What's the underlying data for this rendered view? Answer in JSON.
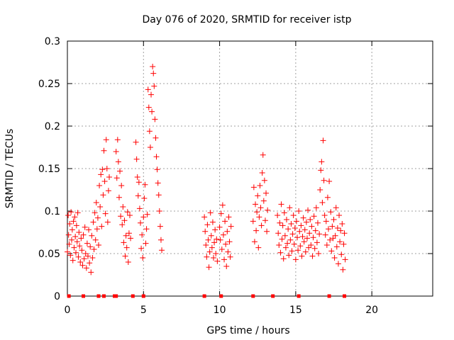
{
  "chart_data": {
    "type": "scatter",
    "title": "Day 076 of 2020, SRMTID for receiver istp",
    "xlabel": "GPS time / hours",
    "ylabel": "SRMTID / TECUs",
    "xlim": [
      0,
      24
    ],
    "ylim": [
      0,
      0.3
    ],
    "xticks": [
      0,
      5,
      10,
      15,
      20
    ],
    "xtick_labels": [
      "0",
      "5",
      "10",
      "15",
      "20"
    ],
    "yticks": [
      0,
      0.05,
      0.1,
      0.15,
      0.2,
      0.25,
      0.3
    ],
    "ytick_labels": [
      "0",
      "0.05",
      "0.1",
      "0.15",
      "0.2",
      "0.25",
      "0.3"
    ],
    "grid": true,
    "marker": "plus",
    "series_color": "#ff0000",
    "series": [
      {
        "name": "SRMTID",
        "points": [
          [
            0.0,
            0.052
          ],
          [
            0.05,
            0.095
          ],
          [
            0.08,
            0.072
          ],
          [
            0.12,
            0.061
          ],
          [
            0.15,
            0.085
          ],
          [
            0.2,
            0.048
          ],
          [
            0.24,
            0.099
          ],
          [
            0.28,
            0.066
          ],
          [
            0.32,
            0.078
          ],
          [
            0.36,
            0.042
          ],
          [
            0.4,
            0.088
          ],
          [
            0.44,
            0.057
          ],
          [
            0.48,
            0.093
          ],
          [
            0.52,
            0.07
          ],
          [
            0.56,
            0.051
          ],
          [
            0.6,
            0.083
          ],
          [
            0.64,
            0.064
          ],
          [
            0.68,
            0.098
          ],
          [
            0.72,
            0.046
          ],
          [
            0.76,
            0.075
          ],
          [
            0.8,
            0.059
          ],
          [
            0.85,
            0.04
          ],
          [
            0.9,
            0.068
          ],
          [
            0.95,
            0.054
          ],
          [
            1.0,
            0.036
          ],
          [
            1.05,
            0.072
          ],
          [
            1.1,
            0.044
          ],
          [
            1.15,
            0.081
          ],
          [
            1.2,
            0.05
          ],
          [
            1.25,
            0.033
          ],
          [
            1.3,
            0.062
          ],
          [
            1.35,
            0.047
          ],
          [
            1.4,
            0.078
          ],
          [
            1.45,
            0.039
          ],
          [
            1.5,
            0.058
          ],
          [
            1.55,
            0.028
          ],
          [
            1.6,
            0.071
          ],
          [
            1.65,
            0.045
          ],
          [
            1.7,
            0.087
          ],
          [
            1.75,
            0.055
          ],
          [
            1.8,
            0.098
          ],
          [
            1.85,
            0.066
          ],
          [
            1.9,
            0.11
          ],
          [
            1.95,
            0.079
          ],
          [
            2.0,
            0.092
          ],
          [
            2.05,
            0.06
          ],
          [
            2.1,
            0.13
          ],
          [
            2.15,
            0.105
          ],
          [
            2.2,
            0.143
          ],
          [
            2.25,
            0.082
          ],
          [
            2.3,
            0.149
          ],
          [
            2.35,
            0.119
          ],
          [
            2.4,
            0.171
          ],
          [
            2.45,
            0.135
          ],
          [
            2.5,
            0.097
          ],
          [
            2.55,
            0.184
          ],
          [
            2.6,
            0.15
          ],
          [
            2.65,
            0.087
          ],
          [
            2.7,
            0.124
          ],
          [
            2.75,
            0.14
          ],
          [
            3.2,
            0.17
          ],
          [
            3.25,
            0.139
          ],
          [
            3.3,
            0.184
          ],
          [
            3.35,
            0.158
          ],
          [
            3.4,
            0.116
          ],
          [
            3.45,
            0.147
          ],
          [
            3.5,
            0.094
          ],
          [
            3.55,
            0.13
          ],
          [
            3.6,
            0.084
          ],
          [
            3.65,
            0.105
          ],
          [
            3.7,
            0.063
          ],
          [
            3.75,
            0.089
          ],
          [
            3.8,
            0.047
          ],
          [
            3.85,
            0.071
          ],
          [
            3.9,
            0.057
          ],
          [
            3.95,
            0.099
          ],
          [
            4.0,
            0.04
          ],
          [
            4.05,
            0.074
          ],
          [
            4.1,
            0.095
          ],
          [
            4.15,
            0.068
          ],
          [
            4.5,
            0.181
          ],
          [
            4.55,
            0.161
          ],
          [
            4.6,
            0.14
          ],
          [
            4.65,
            0.118
          ],
          [
            4.7,
            0.134
          ],
          [
            4.75,
            0.103
          ],
          [
            4.8,
            0.086
          ],
          [
            4.85,
            0.056
          ],
          [
            4.9,
            0.072
          ],
          [
            4.95,
            0.045
          ],
          [
            5.0,
            0.093
          ],
          [
            5.05,
            0.115
          ],
          [
            5.1,
            0.131
          ],
          [
            5.15,
            0.062
          ],
          [
            5.2,
            0.079
          ],
          [
            5.25,
            0.096
          ],
          [
            5.3,
            0.243
          ],
          [
            5.35,
            0.222
          ],
          [
            5.4,
            0.194
          ],
          [
            5.45,
            0.175
          ],
          [
            5.5,
            0.237
          ],
          [
            5.55,
            0.217
          ],
          [
            5.6,
            0.27
          ],
          [
            5.65,
            0.262
          ],
          [
            5.7,
            0.247
          ],
          [
            5.75,
            0.208
          ],
          [
            5.8,
            0.186
          ],
          [
            5.85,
            0.164
          ],
          [
            5.9,
            0.149
          ],
          [
            5.95,
            0.133
          ],
          [
            6.0,
            0.119
          ],
          [
            6.05,
            0.1
          ],
          [
            6.1,
            0.082
          ],
          [
            6.15,
            0.066
          ],
          [
            6.2,
            0.054
          ],
          [
            9.0,
            0.093
          ],
          [
            9.05,
            0.076
          ],
          [
            9.1,
            0.06
          ],
          [
            9.15,
            0.046
          ],
          [
            9.2,
            0.084
          ],
          [
            9.25,
            0.066
          ],
          [
            9.3,
            0.034
          ],
          [
            9.35,
            0.052
          ],
          [
            9.4,
            0.098
          ],
          [
            9.45,
            0.071
          ],
          [
            9.5,
            0.057
          ],
          [
            9.55,
            0.087
          ],
          [
            9.6,
            0.045
          ],
          [
            9.65,
            0.063
          ],
          [
            9.7,
            0.078
          ],
          [
            9.75,
            0.05
          ],
          [
            9.8,
            0.067
          ],
          [
            9.85,
            0.041
          ],
          [
            10.0,
            0.081
          ],
          [
            10.05,
            0.066
          ],
          [
            10.1,
            0.097
          ],
          [
            10.15,
            0.055
          ],
          [
            10.2,
            0.107
          ],
          [
            10.25,
            0.072
          ],
          [
            10.3,
            0.043
          ],
          [
            10.35,
            0.088
          ],
          [
            10.4,
            0.061
          ],
          [
            10.45,
            0.035
          ],
          [
            10.5,
            0.076
          ],
          [
            10.55,
            0.052
          ],
          [
            10.6,
            0.093
          ],
          [
            10.65,
            0.064
          ],
          [
            10.7,
            0.046
          ],
          [
            10.75,
            0.082
          ],
          [
            12.2,
            0.088
          ],
          [
            12.25,
            0.128
          ],
          [
            12.3,
            0.064
          ],
          [
            12.35,
            0.108
          ],
          [
            12.4,
            0.077
          ],
          [
            12.45,
            0.099
          ],
          [
            12.5,
            0.118
          ],
          [
            12.55,
            0.057
          ],
          [
            12.6,
            0.093
          ],
          [
            12.65,
            0.13
          ],
          [
            12.7,
            0.104
          ],
          [
            12.75,
            0.083
          ],
          [
            12.8,
            0.145
          ],
          [
            12.85,
            0.166
          ],
          [
            12.9,
            0.112
          ],
          [
            12.95,
            0.136
          ],
          [
            13.0,
            0.089
          ],
          [
            13.05,
            0.121
          ],
          [
            13.1,
            0.076
          ],
          [
            13.15,
            0.101
          ],
          [
            13.8,
            0.095
          ],
          [
            13.85,
            0.074
          ],
          [
            13.9,
            0.06
          ],
          [
            13.95,
            0.086
          ],
          [
            14.0,
            0.051
          ],
          [
            14.05,
            0.108
          ],
          [
            14.1,
            0.067
          ],
          [
            14.15,
            0.083
          ],
          [
            14.2,
            0.044
          ],
          [
            14.25,
            0.098
          ],
          [
            14.3,
            0.071
          ],
          [
            14.35,
            0.057
          ],
          [
            14.4,
            0.09
          ],
          [
            14.45,
            0.062
          ],
          [
            14.5,
            0.079
          ],
          [
            14.55,
            0.048
          ],
          [
            14.6,
            0.104
          ],
          [
            14.65,
            0.066
          ],
          [
            14.7,
            0.085
          ],
          [
            14.75,
            0.053
          ],
          [
            14.8,
            0.073
          ],
          [
            14.85,
            0.095
          ],
          [
            14.9,
            0.061
          ],
          [
            14.95,
            0.08
          ],
          [
            15.0,
            0.043
          ],
          [
            15.05,
            0.088
          ],
          [
            15.1,
            0.069
          ],
          [
            15.15,
            0.054
          ],
          [
            15.2,
            0.1
          ],
          [
            15.25,
            0.076
          ],
          [
            15.3,
            0.059
          ],
          [
            15.35,
            0.083
          ],
          [
            15.4,
            0.047
          ],
          [
            15.45,
            0.07
          ],
          [
            15.5,
            0.092
          ],
          [
            15.55,
            0.064
          ],
          [
            15.6,
            0.078
          ],
          [
            15.65,
            0.052
          ],
          [
            15.7,
            0.087
          ],
          [
            15.75,
            0.068
          ],
          [
            15.8,
            0.101
          ],
          [
            15.85,
            0.057
          ],
          [
            15.9,
            0.074
          ],
          [
            15.95,
            0.09
          ],
          [
            16.0,
            0.06
          ],
          [
            16.05,
            0.082
          ],
          [
            16.1,
            0.047
          ],
          [
            16.15,
            0.069
          ],
          [
            16.2,
            0.094
          ],
          [
            16.25,
            0.056
          ],
          [
            16.3,
            0.077
          ],
          [
            16.35,
            0.104
          ],
          [
            16.4,
            0.063
          ],
          [
            16.45,
            0.086
          ],
          [
            16.5,
            0.05
          ],
          [
            16.55,
            0.073
          ],
          [
            16.6,
            0.125
          ],
          [
            16.65,
            0.148
          ],
          [
            16.7,
            0.158
          ],
          [
            16.75,
            0.11
          ],
          [
            16.8,
            0.183
          ],
          [
            16.85,
            0.136
          ],
          [
            16.9,
            0.095
          ],
          [
            16.95,
            0.072
          ],
          [
            17.0,
            0.088
          ],
          [
            17.05,
            0.06
          ],
          [
            17.1,
            0.116
          ],
          [
            17.15,
            0.079
          ],
          [
            17.2,
            0.135
          ],
          [
            17.25,
            0.066
          ],
          [
            17.3,
            0.099
          ],
          [
            17.35,
            0.053
          ],
          [
            17.4,
            0.082
          ],
          [
            17.45,
            0.068
          ],
          [
            17.5,
            0.09
          ],
          [
            17.55,
            0.045
          ],
          [
            17.6,
            0.071
          ],
          [
            17.65,
            0.104
          ],
          [
            17.7,
            0.058
          ],
          [
            17.75,
            0.08
          ],
          [
            17.8,
            0.038
          ],
          [
            17.85,
            0.095
          ],
          [
            17.9,
            0.064
          ],
          [
            17.95,
            0.077
          ],
          [
            18.0,
            0.049
          ],
          [
            18.05,
            0.085
          ],
          [
            18.1,
            0.031
          ],
          [
            18.15,
            0.061
          ],
          [
            18.2,
            0.074
          ],
          [
            18.25,
            0.043
          ]
        ]
      }
    ],
    "zero_markers": [
      0.1,
      1.05,
      2.05,
      2.4,
      3.1,
      3.2,
      4.3,
      5.0,
      9.0,
      10.1,
      12.2,
      13.5,
      15.2,
      17.2,
      18.2
    ]
  }
}
